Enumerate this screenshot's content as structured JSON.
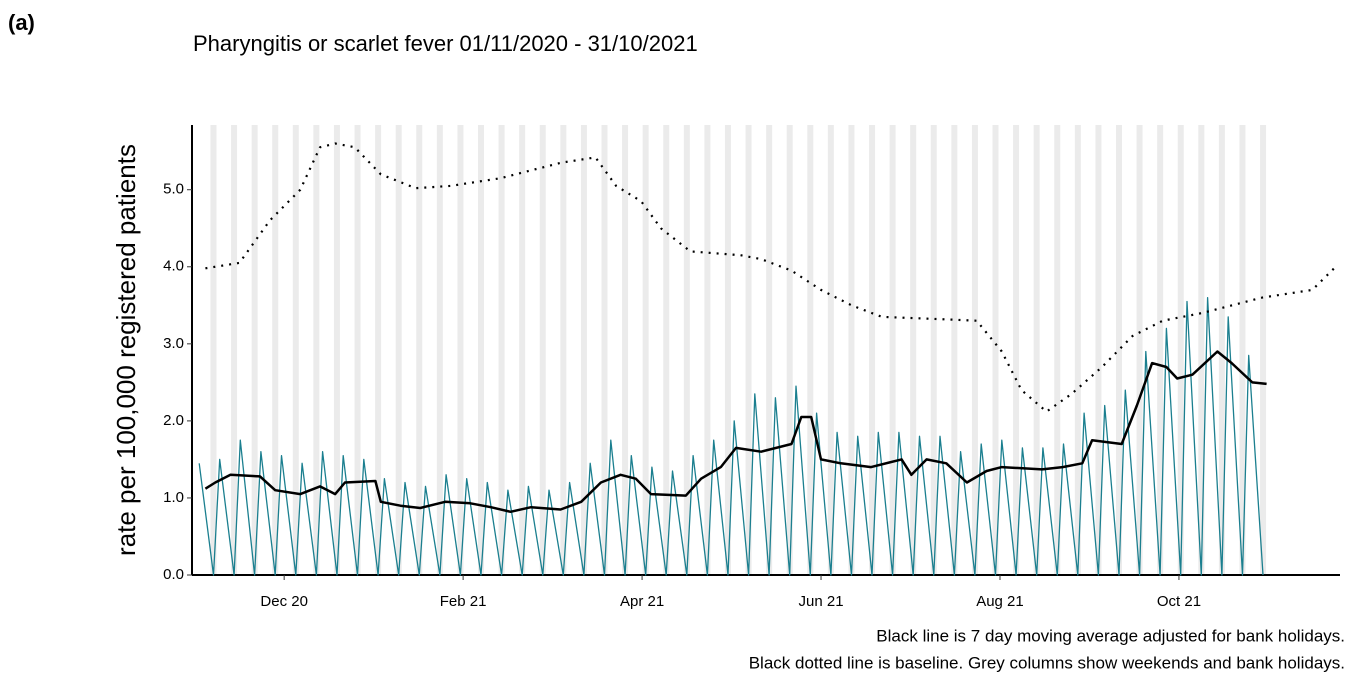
{
  "panel_label": "(a)",
  "chart_data": {
    "type": "line",
    "title": "Pharyngitis or scarlet fever 01/11/2020 - 31/10/2021",
    "y_label": "rate per 100,000 registered patients",
    "notes": [
      "Black line is 7 day moving average adjusted for bank holidays.",
      "Black dotted line is baseline. Grey columns show weekends and bank holidays."
    ],
    "xlim": [
      -0.03,
      12.8
    ],
    "xticks": [
      {
        "value": 1,
        "label": "Dec 20"
      },
      {
        "value": 3,
        "label": "Feb 21"
      },
      {
        "value": 5,
        "label": "Apr 21"
      },
      {
        "value": 7,
        "label": "Jun 21"
      },
      {
        "value": 9,
        "label": "Aug 21"
      },
      {
        "value": 11,
        "label": "Oct 21"
      }
    ],
    "ylim": [
      0,
      5.84
    ],
    "yticks": [
      {
        "value": 0,
        "label": "0.0"
      },
      {
        "value": 1,
        "label": "1.0"
      },
      {
        "value": 2,
        "label": "2.0"
      },
      {
        "value": 3,
        "label": "3.0"
      },
      {
        "value": 4,
        "label": "4.0"
      },
      {
        "value": 5,
        "label": "5.0"
      }
    ],
    "weekend_color": "#ebebeb",
    "series": [
      {
        "style": "daily",
        "color": "#1b7f8f",
        "x": [
          0.05,
          0.21,
          0.28,
          0.44,
          0.51,
          0.67,
          0.74,
          0.9,
          0.97,
          1.13,
          1.2,
          1.36,
          1.43,
          1.59,
          1.66,
          1.82,
          1.89,
          2.05,
          2.12,
          2.28,
          2.35,
          2.51,
          2.58,
          2.74,
          2.81,
          2.97,
          3.04,
          3.2,
          3.27,
          3.43,
          3.5,
          3.66,
          3.73,
          3.89,
          3.96,
          4.12,
          4.19,
          4.35,
          4.42,
          4.58,
          4.65,
          4.81,
          4.88,
          5.04,
          5.11,
          5.27,
          5.34,
          5.5,
          5.57,
          5.73,
          5.8,
          5.96,
          6.03,
          6.19,
          6.26,
          6.42,
          6.49,
          6.65,
          6.72,
          6.88,
          6.95,
          7.11,
          7.18,
          7.34,
          7.41,
          7.57,
          7.64,
          7.8,
          7.87,
          8.03,
          8.1,
          8.26,
          8.33,
          8.49,
          8.56,
          8.72,
          8.79,
          8.95,
          9.02,
          9.18,
          9.25,
          9.41,
          9.48,
          9.64,
          9.71,
          9.87,
          9.94,
          10.1,
          10.17,
          10.33,
          10.4,
          10.56,
          10.63,
          10.79,
          10.86,
          11.02,
          11.09,
          11.25,
          11.32,
          11.48,
          11.55,
          11.71,
          11.78,
          11.94
        ],
        "values": [
          1.45,
          0,
          1.5,
          0,
          1.75,
          0,
          1.6,
          0,
          1.55,
          0,
          1.45,
          0,
          1.6,
          0,
          1.55,
          0,
          1.5,
          0,
          1.25,
          0,
          1.2,
          0,
          1.15,
          0,
          1.3,
          0,
          1.25,
          0,
          1.2,
          0,
          1.1,
          0,
          1.15,
          0,
          1.1,
          0,
          1.2,
          0,
          1.45,
          0,
          1.75,
          0,
          1.55,
          0,
          1.4,
          0,
          1.35,
          0,
          1.55,
          0,
          1.75,
          0,
          2.0,
          0,
          2.35,
          0,
          2.3,
          0,
          2.45,
          0,
          2.1,
          0,
          1.85,
          0,
          1.8,
          0,
          1.85,
          0,
          1.85,
          0,
          1.8,
          0,
          1.8,
          0,
          1.6,
          0,
          1.7,
          0,
          1.75,
          0,
          1.65,
          0,
          1.65,
          0,
          1.7,
          0,
          2.1,
          0,
          2.2,
          0,
          2.4,
          0,
          2.9,
          0,
          3.2,
          0,
          3.55,
          0,
          3.6,
          0,
          3.35,
          0,
          2.85,
          0
        ]
      },
      {
        "style": "solid",
        "color": "#000000",
        "x": [
          0.12,
          0.23,
          0.4,
          0.73,
          0.9,
          1.18,
          1.4,
          1.57,
          1.68,
          2.02,
          2.08,
          2.3,
          2.52,
          2.8,
          3.08,
          3.31,
          3.53,
          3.76,
          4.09,
          4.32,
          4.54,
          4.76,
          4.93,
          5.1,
          5.49,
          5.66,
          5.88,
          6.05,
          6.33,
          6.67,
          6.78,
          6.89,
          7.0,
          7.22,
          7.56,
          7.9,
          8.01,
          8.18,
          8.4,
          8.63,
          8.85,
          9.02,
          9.47,
          9.7,
          9.92,
          10.03,
          10.36,
          10.53,
          10.7,
          10.86,
          10.98,
          11.15,
          11.43,
          11.59,
          11.82,
          11.98
        ],
        "values": [
          1.12,
          1.2,
          1.3,
          1.28,
          1.1,
          1.05,
          1.15,
          1.05,
          1.2,
          1.22,
          0.95,
          0.9,
          0.87,
          0.95,
          0.93,
          0.88,
          0.82,
          0.88,
          0.85,
          0.95,
          1.2,
          1.3,
          1.25,
          1.05,
          1.03,
          1.25,
          1.4,
          1.65,
          1.6,
          1.7,
          2.05,
          2.05,
          1.5,
          1.45,
          1.4,
          1.5,
          1.3,
          1.5,
          1.45,
          1.2,
          1.35,
          1.4,
          1.37,
          1.4,
          1.45,
          1.75,
          1.7,
          2.2,
          2.75,
          2.7,
          2.55,
          2.6,
          2.9,
          2.75,
          2.5,
          2.48
        ]
      },
      {
        "style": "dotted",
        "color": "#000000",
        "x": [
          0.12,
          0.5,
          0.84,
          1.18,
          1.4,
          1.57,
          1.79,
          2.08,
          2.47,
          2.86,
          3.42,
          4.09,
          4.48,
          4.71,
          4.99,
          5.21,
          5.54,
          6.1,
          6.33,
          6.67,
          7.0,
          7.34,
          7.68,
          8.35,
          8.74,
          9.02,
          9.24,
          9.52,
          9.8,
          10.14,
          10.48,
          10.82,
          11.26,
          11.93,
          12.49,
          12.77
        ],
        "values": [
          3.98,
          4.05,
          4.6,
          5.0,
          5.55,
          5.6,
          5.55,
          5.2,
          5.02,
          5.05,
          5.15,
          5.35,
          5.42,
          5.05,
          4.85,
          4.5,
          4.2,
          4.15,
          4.1,
          3.95,
          3.7,
          3.5,
          3.35,
          3.32,
          3.3,
          2.9,
          2.4,
          2.12,
          2.35,
          2.7,
          3.1,
          3.3,
          3.4,
          3.6,
          3.7,
          4.02
        ]
      }
    ]
  }
}
